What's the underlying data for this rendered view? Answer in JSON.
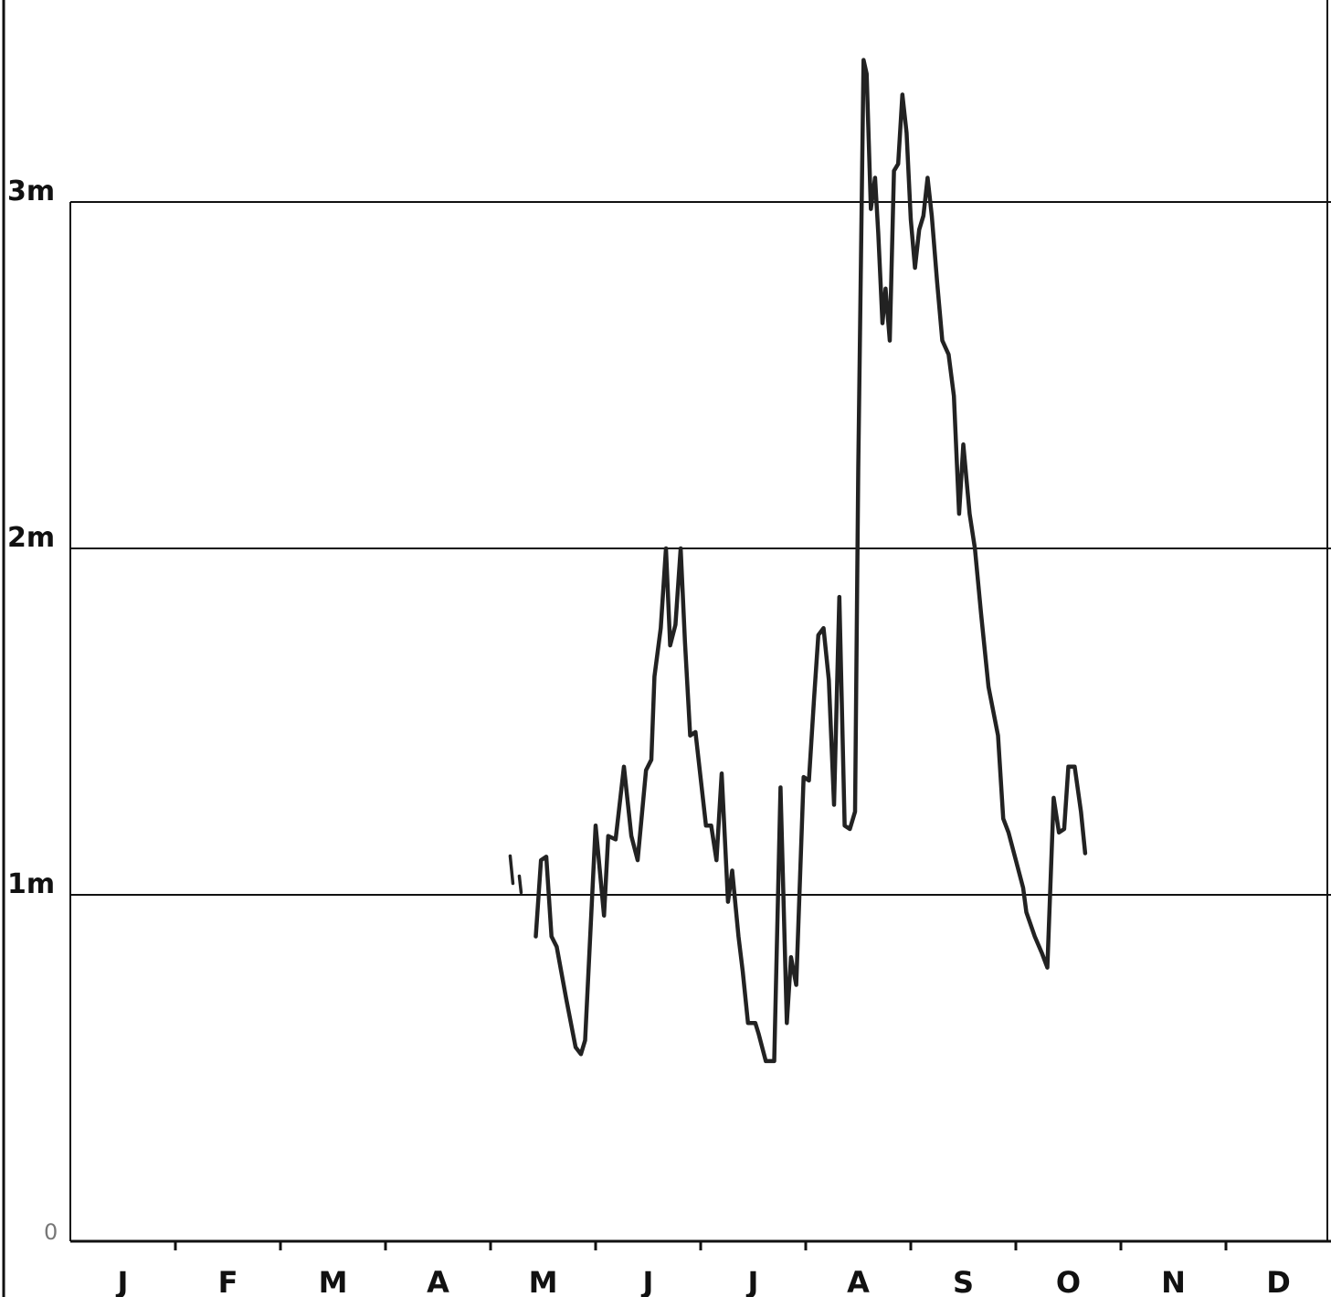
{
  "chart_data": {
    "type": "line",
    "title": "",
    "xlabel": "",
    "ylabel": "",
    "x_unit": "month of year (0 = start of January, 12 = end of December)",
    "y_unit": "m",
    "xlim": [
      0,
      12
    ],
    "ylim": [
      0,
      3.6
    ],
    "yticks": [
      {
        "value": 0,
        "label": "0"
      },
      {
        "value": 1,
        "label": "1m"
      },
      {
        "value": 2,
        "label": "2m"
      },
      {
        "value": 3,
        "label": "3m"
      }
    ],
    "month_labels": [
      "J",
      "F",
      "M",
      "A",
      "M",
      "J",
      "J",
      "A",
      "S",
      "O",
      "N",
      "D"
    ],
    "grid": {
      "horizontal": true,
      "vertical": false
    },
    "series_mark": "I",
    "series": [
      {
        "points": [
          [
            4.43,
            0.88
          ],
          [
            4.48,
            1.1
          ],
          [
            4.53,
            1.11
          ],
          [
            4.58,
            0.88
          ],
          [
            4.63,
            0.85
          ],
          [
            4.72,
            0.7
          ],
          [
            4.81,
            0.56
          ],
          [
            4.86,
            0.54
          ],
          [
            4.9,
            0.58
          ],
          [
            5.0,
            1.2
          ],
          [
            5.08,
            0.94
          ],
          [
            5.12,
            1.17
          ],
          [
            5.19,
            1.16
          ],
          [
            5.27,
            1.37
          ],
          [
            5.34,
            1.17
          ],
          [
            5.4,
            1.1
          ],
          [
            5.48,
            1.36
          ],
          [
            5.53,
            1.39
          ],
          [
            5.56,
            1.63
          ],
          [
            5.62,
            1.77
          ],
          [
            5.67,
            2.0
          ],
          [
            5.71,
            1.72
          ],
          [
            5.76,
            1.78
          ],
          [
            5.81,
            2.0
          ],
          [
            5.85,
            1.73
          ],
          [
            5.9,
            1.46
          ],
          [
            5.95,
            1.47
          ],
          [
            6.05,
            1.2
          ],
          [
            6.1,
            1.2
          ],
          [
            6.15,
            1.1
          ],
          [
            6.2,
            1.35
          ],
          [
            6.26,
            0.98
          ],
          [
            6.3,
            1.07
          ],
          [
            6.36,
            0.88
          ],
          [
            6.4,
            0.78
          ],
          [
            6.45,
            0.63
          ],
          [
            6.52,
            0.63
          ],
          [
            6.55,
            0.6
          ],
          [
            6.62,
            0.52
          ],
          [
            6.7,
            0.52
          ],
          [
            6.76,
            1.31
          ],
          [
            6.82,
            0.63
          ],
          [
            6.86,
            0.82
          ],
          [
            6.91,
            0.74
          ],
          [
            6.98,
            1.34
          ],
          [
            7.03,
            1.33
          ],
          [
            7.08,
            1.57
          ],
          [
            7.12,
            1.75
          ],
          [
            7.17,
            1.77
          ],
          [
            7.22,
            1.62
          ],
          [
            7.27,
            1.26
          ],
          [
            7.32,
            1.86
          ],
          [
            7.37,
            1.2
          ],
          [
            7.42,
            1.19
          ],
          [
            7.47,
            1.24
          ],
          [
            7.5,
            2.23
          ],
          [
            7.55,
            3.41
          ],
          [
            7.58,
            3.37
          ],
          [
            7.62,
            2.98
          ],
          [
            7.66,
            3.07
          ],
          [
            7.69,
            2.91
          ],
          [
            7.73,
            2.65
          ],
          [
            7.76,
            2.75
          ],
          [
            7.8,
            2.6
          ],
          [
            7.84,
            3.09
          ],
          [
            7.88,
            3.11
          ],
          [
            7.92,
            3.31
          ],
          [
            7.96,
            3.2
          ],
          [
            8.0,
            2.95
          ],
          [
            8.04,
            2.81
          ],
          [
            8.08,
            2.92
          ],
          [
            8.12,
            2.96
          ],
          [
            8.16,
            3.07
          ],
          [
            8.2,
            2.96
          ],
          [
            8.25,
            2.77
          ],
          [
            8.3,
            2.6
          ],
          [
            8.36,
            2.56
          ],
          [
            8.41,
            2.44
          ],
          [
            8.46,
            2.1
          ],
          [
            8.5,
            2.3
          ],
          [
            8.56,
            2.1
          ],
          [
            8.61,
            2.0
          ],
          [
            8.67,
            1.81
          ],
          [
            8.74,
            1.6
          ],
          [
            8.83,
            1.46
          ],
          [
            8.88,
            1.22
          ],
          [
            8.93,
            1.18
          ],
          [
            9.0,
            1.1
          ],
          [
            9.07,
            1.02
          ],
          [
            9.1,
            0.95
          ],
          [
            9.18,
            0.88
          ],
          [
            9.25,
            0.83
          ],
          [
            9.3,
            0.79
          ],
          [
            9.36,
            1.28
          ],
          [
            9.41,
            1.18
          ],
          [
            9.46,
            1.19
          ],
          [
            9.5,
            1.37
          ],
          [
            9.56,
            1.37
          ],
          [
            9.62,
            1.24
          ],
          [
            9.66,
            1.12
          ]
        ]
      }
    ]
  }
}
